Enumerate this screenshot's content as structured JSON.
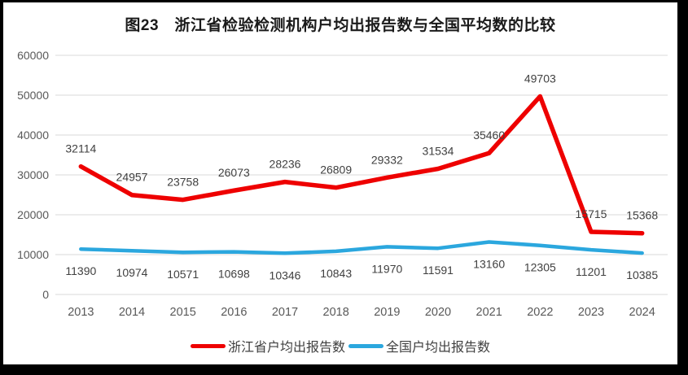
{
  "title": "图23　浙江省检验检测机构户均出报告数与全国平均数的比较",
  "legend": [
    {
      "key": "zhejiang",
      "label": "浙江省户均出报告数",
      "color": "#ee0000"
    },
    {
      "key": "national",
      "label": "全国户均出报告数",
      "color": "#2ba7de"
    }
  ],
  "colors": {
    "zhejiang_line": "#ee0000",
    "national_line": "#2ba7de",
    "gridline": "#d9d9d9",
    "axis_tick_text": "#595959",
    "data_label_text": "#404040",
    "title_text": "#1a1a1a",
    "frame": "#000000"
  },
  "chart_data": {
    "type": "line",
    "title": "图23　浙江省检验检测机构户均出报告数与全国平均数的比较",
    "categories": [
      "2013",
      "2014",
      "2015",
      "2016",
      "2017",
      "2018",
      "2019",
      "2020",
      "2021",
      "2022",
      "2023",
      "2024"
    ],
    "series": [
      {
        "key": "zhejiang",
        "name": "浙江省户均出报告数",
        "color": "#ee0000",
        "stroke_width": 5.5,
        "label_position": "above",
        "values": [
          32114,
          24957,
          23758,
          26073,
          28236,
          26809,
          29332,
          31534,
          35460,
          49703,
          15715,
          15368
        ]
      },
      {
        "key": "national",
        "name": "全国户均出报告数",
        "color": "#2ba7de",
        "stroke_width": 4.5,
        "label_position": "below",
        "values": [
          11390,
          10974,
          10571,
          10698,
          10346,
          10843,
          11970,
          11591,
          13160,
          12305,
          11201,
          10385
        ]
      }
    ],
    "xlabel": "",
    "ylabel": "",
    "ylim": [
      0,
      60000
    ],
    "yticks": [
      0,
      10000,
      20000,
      30000,
      40000,
      50000,
      60000
    ],
    "grid": true,
    "data_labels": true,
    "legend_position": "bottom"
  }
}
